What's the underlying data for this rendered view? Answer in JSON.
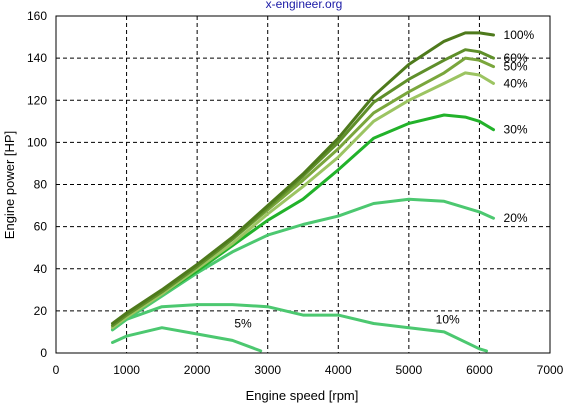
{
  "watermark": "x-engineer.org",
  "chart_data": {
    "type": "line",
    "title": "",
    "xlabel": "Engine speed [rpm]",
    "ylabel": "Engine power [HP]",
    "xlim": [
      0,
      7000
    ],
    "ylim": [
      0,
      160
    ],
    "xticks": [
      0,
      1000,
      2000,
      3000,
      4000,
      5000,
      6000,
      7000
    ],
    "yticks": [
      0,
      20,
      40,
      60,
      80,
      100,
      120,
      140,
      160
    ],
    "grid": true,
    "series": [
      {
        "name": "100%",
        "color": "#4e7a1c",
        "x": [
          800,
          1000,
          1500,
          2000,
          2500,
          3000,
          3500,
          4000,
          4500,
          5000,
          5500,
          5800,
          6000,
          6200
        ],
        "y": [
          14,
          19,
          30,
          42,
          55,
          70,
          85,
          102,
          122,
          137,
          148,
          152,
          152,
          151
        ]
      },
      {
        "name": "60%",
        "color": "#5f8f2a",
        "x": [
          800,
          1000,
          1500,
          2000,
          2500,
          3000,
          3500,
          4000,
          4500,
          5000,
          5500,
          5800,
          6000,
          6200
        ],
        "y": [
          13,
          18,
          29,
          41,
          54,
          69,
          84,
          100,
          119,
          130,
          139,
          144,
          143,
          140
        ]
      },
      {
        "name": "50%",
        "color": "#7aa63c",
        "x": [
          800,
          1000,
          1500,
          2000,
          2500,
          3000,
          3500,
          4000,
          4500,
          5000,
          5500,
          5800,
          6000,
          6200
        ],
        "y": [
          13,
          18,
          29,
          41,
          54,
          68,
          82,
          97,
          114,
          124,
          133,
          140,
          139,
          136
        ]
      },
      {
        "name": "40%",
        "color": "#9cc462",
        "x": [
          800,
          1000,
          1500,
          2000,
          2500,
          3000,
          3500,
          4000,
          4500,
          5000,
          5500,
          5800,
          6000,
          6200
        ],
        "y": [
          12,
          17,
          28,
          40,
          52,
          66,
          79,
          93,
          110,
          120,
          128,
          133,
          132,
          128
        ]
      },
      {
        "name": "30%",
        "color": "#22b22a",
        "x": [
          800,
          1000,
          1500,
          2000,
          2500,
          3000,
          3500,
          4000,
          4500,
          5000,
          5500,
          5800,
          6000,
          6200
        ],
        "y": [
          12,
          17,
          28,
          39,
          51,
          63,
          73,
          87,
          102,
          109,
          113,
          112,
          110,
          106
        ]
      },
      {
        "name": "20%",
        "color": "#4cc870",
        "x": [
          800,
          1000,
          1500,
          2000,
          2500,
          3000,
          3500,
          4000,
          4500,
          5000,
          5500,
          6000,
          6200
        ],
        "y": [
          11,
          16,
          27,
          38,
          48,
          56,
          61,
          65,
          71,
          73,
          72,
          67,
          64
        ]
      },
      {
        "name": "10%",
        "color": "#4cc870",
        "x": [
          800,
          1000,
          1500,
          2000,
          2500,
          3000,
          3500,
          4000,
          4500,
          5000,
          5500,
          6000,
          6100
        ],
        "y": [
          11,
          16,
          22,
          23,
          23,
          22,
          18,
          18,
          14,
          12,
          10,
          2,
          1
        ]
      },
      {
        "name": "5%",
        "color": "#4cc870",
        "x": [
          800,
          1000,
          1500,
          2000,
          2500,
          2900
        ],
        "y": [
          5,
          8,
          12,
          9,
          6,
          1
        ]
      }
    ]
  }
}
